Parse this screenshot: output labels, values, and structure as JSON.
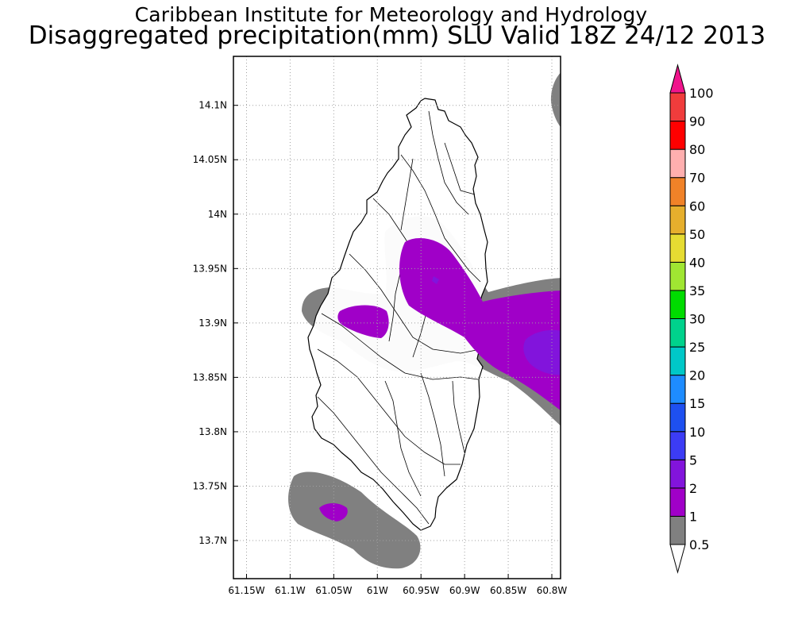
{
  "header": {
    "title_line1": "Caribbean Institute for Meteorology and Hydrology",
    "title_line2": "Disaggregated precipitation(mm) SLU Valid 18Z 24/12 2013"
  },
  "map": {
    "lon_range": [
      -61.165,
      -60.79
    ],
    "lat_range": [
      13.665,
      14.145
    ],
    "x_ticks": [
      {
        "lon": -61.15,
        "label": "61.15W"
      },
      {
        "lon": -61.1,
        "label": "61.1W"
      },
      {
        "lon": -61.05,
        "label": "61.05W"
      },
      {
        "lon": -61.0,
        "label": "61W"
      },
      {
        "lon": -60.95,
        "label": "60.95W"
      },
      {
        "lon": -60.9,
        "label": "60.9W"
      },
      {
        "lon": -60.85,
        "label": "60.85W"
      },
      {
        "lon": -60.8,
        "label": "60.8W"
      }
    ],
    "y_ticks": [
      {
        "lat": 14.1,
        "label": "14.1N"
      },
      {
        "lat": 14.05,
        "label": "14.05N"
      },
      {
        "lat": 14.0,
        "label": "14N"
      },
      {
        "lat": 13.95,
        "label": "13.95N"
      },
      {
        "lat": 13.9,
        "label": "13.9N"
      },
      {
        "lat": 13.85,
        "label": "13.85N"
      },
      {
        "lat": 13.8,
        "label": "13.8N"
      },
      {
        "lat": 13.75,
        "label": "13.75N"
      },
      {
        "lat": 13.7,
        "label": "13.7N"
      }
    ],
    "gridlines": true,
    "colors": {
      "band_0_5_1": "#808080",
      "band_1_2": "#a000c8",
      "band_2_5": "#8214dc",
      "island_fill": "#ffffff",
      "outline": "#000000"
    }
  },
  "colorbar": {
    "segments": [
      {
        "color": "#ffffff"
      },
      {
        "color": "#808080"
      },
      {
        "color": "#a000c8"
      },
      {
        "color": "#8214dc"
      },
      {
        "color": "#3c3cf5"
      },
      {
        "color": "#1e50f0"
      },
      {
        "color": "#1e8cff"
      },
      {
        "color": "#00c8c8"
      },
      {
        "color": "#00d28c"
      },
      {
        "color": "#00dc00"
      },
      {
        "color": "#a0e632"
      },
      {
        "color": "#e6dc32"
      },
      {
        "color": "#e6af2d"
      },
      {
        "color": "#f08228"
      },
      {
        "color": "#ffafaf"
      },
      {
        "color": "#ff0000"
      },
      {
        "color": "#f03c3c"
      },
      {
        "color": "#f0148c"
      }
    ],
    "labels": [
      "0.5",
      "1",
      "2",
      "5",
      "10",
      "15",
      "20",
      "25",
      "30",
      "35",
      "40",
      "50",
      "60",
      "70",
      "80",
      "90",
      "100"
    ]
  }
}
